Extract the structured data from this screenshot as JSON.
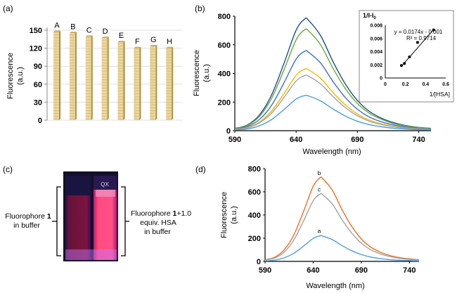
{
  "panels": {
    "a": "(a)",
    "b": "(b)",
    "c": "(c)",
    "d": "(d)"
  },
  "chart_data": [
    {
      "panel": "(a)",
      "type": "bar",
      "categories": [
        "A",
        "B",
        "C",
        "D",
        "E",
        "F",
        "G",
        "H"
      ],
      "values": [
        147,
        145,
        139,
        137,
        130,
        120,
        123,
        120
      ],
      "ylabel_line1": "Fluorescence",
      "ylabel_line2": "(a.u.)",
      "ylim": [
        0,
        150
      ],
      "yticks": [
        "0",
        "30",
        "60",
        "90",
        "120",
        "150"
      ],
      "grid": true,
      "bar_color": "#e6cc8a"
    },
    {
      "panel": "(b)",
      "type": "line",
      "xlabel": "Wavelength (nm)",
      "ylabel_line1": "Fluorescence",
      "ylabel_line2": "(a.u.)",
      "xlim": [
        590,
        750
      ],
      "ylim": [
        0,
        800
      ],
      "xticks": [
        "590",
        "640",
        "690",
        "740"
      ],
      "yticks": [
        "0",
        "200",
        "400",
        "600",
        "800"
      ],
      "x": [
        590,
        600,
        610,
        620,
        630,
        640,
        647,
        650,
        660,
        670,
        680,
        690,
        700,
        710,
        720,
        730,
        740,
        750
      ],
      "series": [
        {
          "color": "#1f4e8c",
          "values": [
            16,
            39,
            109,
            250,
            468,
            702,
            780,
            772,
            663,
            484,
            328,
            211,
            133,
            86,
            55,
            35,
            23,
            16
          ]
        },
        {
          "color": "#6aaa3a",
          "values": [
            14,
            35,
            99,
            226,
            423,
            635,
            705,
            698,
            599,
            437,
            296,
            190,
            120,
            78,
            49,
            32,
            21,
            14
          ]
        },
        {
          "color": "#3a6fcf",
          "values": [
            11,
            28,
            78,
            178,
            333,
            500,
            555,
            549,
            472,
            344,
            233,
            150,
            94,
            61,
            39,
            25,
            17,
            11
          ]
        },
        {
          "color": "#f5b800",
          "values": [
            9,
            22,
            60,
            138,
            258,
            387,
            430,
            426,
            366,
            267,
            181,
            116,
            73,
            47,
            30,
            19,
            13,
            9
          ]
        },
        {
          "color": "#a3a3a3",
          "values": [
            8,
            19,
            54,
            123,
            231,
            347,
            385,
            381,
            327,
            239,
            162,
            104,
            65,
            42,
            27,
            17,
            12,
            8
          ]
        },
        {
          "color": "#4a9ee0",
          "values": [
            5,
            12,
            34,
            78,
            147,
            221,
            245,
            243,
            208,
            152,
            103,
            66,
            42,
            27,
            17,
            11,
            7,
            5
          ]
        }
      ],
      "inset": {
        "type": "scatter",
        "ylabel": "1/I-I",
        "ylabel_sub": "0",
        "xlabel": "1/[HSA]",
        "xlim": [
          0,
          0.6
        ],
        "ylim": [
          0,
          0.008
        ],
        "xticks": [
          "0",
          "0.2",
          "0.4",
          "0.6"
        ],
        "yticks": [
          "0",
          "0.002",
          "0.004",
          "0.006",
          "0.008"
        ],
        "points": [
          [
            0.16,
            0.0019
          ],
          [
            0.19,
            0.0022
          ],
          [
            0.24,
            0.0032
          ],
          [
            0.32,
            0.0054
          ],
          [
            0.48,
            0.0073
          ]
        ],
        "equation": "y = 0.0174x - 0.001",
        "r2": "R² = 0.9714",
        "fit": {
          "slope": 0.0174,
          "intercept": -0.001
        }
      }
    },
    {
      "panel": "(d)",
      "type": "line",
      "xlabel": "Wavelength (nm)",
      "ylabel_line1": "Fluorescence",
      "ylabel_line2": "(a.u.)",
      "xlim": [
        590,
        750
      ],
      "ylim": [
        0,
        800
      ],
      "xticks": [
        "590",
        "640",
        "690",
        "740"
      ],
      "yticks": [
        "0",
        "200",
        "400",
        "600",
        "800"
      ],
      "x": [
        590,
        600,
        610,
        620,
        630,
        640,
        647,
        650,
        660,
        670,
        680,
        690,
        700,
        710,
        720,
        730,
        740,
        750
      ],
      "series": [
        {
          "name": "b",
          "color": "#f07020",
          "values": [
            14,
            36,
            101,
            230,
            432,
            648,
            720,
            713,
            612,
            446,
            302,
            194,
            122,
            79,
            50,
            32,
            22,
            14
          ]
        },
        {
          "name": "c",
          "color": "#a3a3a3",
          "values": [
            12,
            29,
            81,
            186,
            348,
            522,
            580,
            574,
            493,
            360,
            244,
            157,
            99,
            64,
            41,
            26,
            17,
            12
          ]
        },
        {
          "name": "a",
          "color": "#4a9ee0",
          "values": [
            4,
            11,
            31,
            70,
            132,
            198,
            220,
            218,
            187,
            136,
            92,
            59,
            37,
            24,
            15,
            10,
            7,
            4
          ]
        }
      ]
    }
  ],
  "photo": {
    "left_caption_line1": "Fluorophore ",
    "left_caption_bold": "1",
    "left_caption_line2": "in buffer",
    "right_caption_line1a": "Fluorophore ",
    "right_caption_bold": "1",
    "right_caption_line1b": "+1.0",
    "right_caption_line2": "equiv. HSA",
    "right_caption_line3": "in buffer",
    "cuvette_label": "QX"
  }
}
